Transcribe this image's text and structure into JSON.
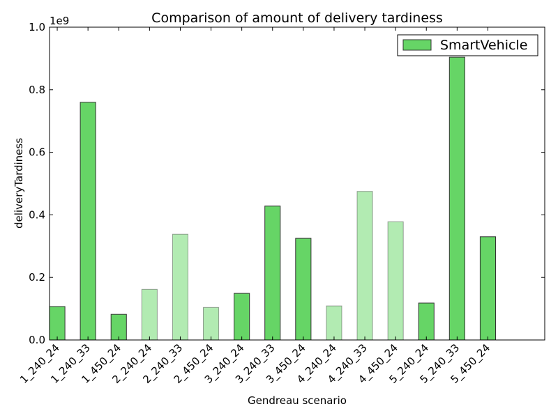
{
  "chart_data": {
    "type": "bar",
    "title": "Comparison of amount of delivery tardiness",
    "xlabel": "Gendreau scenario",
    "ylabel": "deliveryTardiness",
    "y_multiplier_label": "1e9",
    "ylim": [
      0,
      1.0
    ],
    "yticks": [
      "0.0",
      "0.2",
      "0.4",
      "0.6",
      "0.8",
      "1.0"
    ],
    "grid": false,
    "legend_position": "top-right",
    "colors": {
      "bar": "#66d566",
      "bar_light": "#b2ebb2",
      "edge": "#333333"
    },
    "categories": [
      "1_240_24",
      "1_240_33",
      "1_450_24",
      "2_240_24",
      "2_240_33",
      "2_450_24",
      "3_240_24",
      "3_240_33",
      "3_450_24",
      "4_240_24",
      "4_240_33",
      "4_450_24",
      "5_240_24",
      "5_240_33",
      "5_450_24"
    ],
    "series": [
      {
        "name": "SmartVehicle",
        "values": [
          0.107,
          0.76,
          0.082,
          0.162,
          0.338,
          0.104,
          0.149,
          0.428,
          0.325,
          0.109,
          0.475,
          0.378,
          0.118,
          0.904,
          0.33
        ],
        "faded": [
          false,
          false,
          false,
          true,
          true,
          true,
          false,
          false,
          false,
          true,
          true,
          true,
          false,
          false,
          false
        ]
      }
    ]
  }
}
